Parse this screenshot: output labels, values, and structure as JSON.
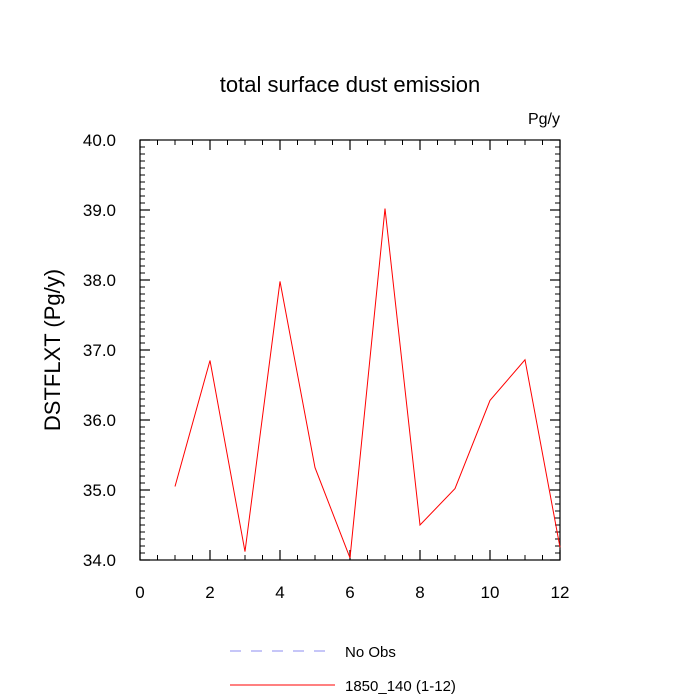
{
  "chart_data": {
    "type": "line",
    "title": "total surface dust emission",
    "units_label": "Pg/y",
    "ylabel": "DSTFLXT  (Pg/y)",
    "xlabel": "",
    "xlim": [
      0,
      12
    ],
    "ylim": [
      34.0,
      40.0
    ],
    "x_ticks": [
      0,
      2,
      4,
      6,
      8,
      10,
      12
    ],
    "x_tick_labels": [
      "0",
      "2",
      "4",
      "6",
      "8",
      "10",
      "12"
    ],
    "y_ticks": [
      34.0,
      35.0,
      36.0,
      37.0,
      38.0,
      39.0,
      40.0
    ],
    "y_tick_labels": [
      "34.0",
      "35.0",
      "36.0",
      "37.0",
      "38.0",
      "39.0",
      "40.0"
    ],
    "grid": false,
    "legend_position": "bottom",
    "legend": [
      {
        "label": "No Obs",
        "color": "#8c8cf0",
        "style": "dashed"
      },
      {
        "label": "1850_140 (1-12)",
        "color": "#ff0000",
        "style": "solid"
      }
    ],
    "series": [
      {
        "name": "1850_140 (1-12)",
        "color": "#ff0000",
        "x": [
          1,
          2,
          3,
          4,
          5,
          6,
          7,
          8,
          9,
          10,
          11,
          12
        ],
        "values": [
          35.05,
          36.85,
          34.12,
          37.98,
          35.32,
          34.03,
          39.02,
          34.5,
          35.02,
          36.28,
          36.86,
          34.18
        ]
      }
    ]
  }
}
